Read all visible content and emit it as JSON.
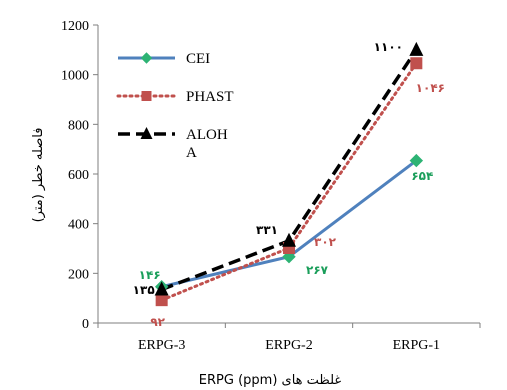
{
  "chart_data": {
    "type": "line",
    "categories": [
      "ERPG-3",
      "ERPG-2",
      "ERPG-1"
    ],
    "ylabel": "فاصله خطر (متر)",
    "xlabel": "غلظت های ERPG (ppm)",
    "ylim": [
      0,
      1200
    ],
    "yticks": [
      "0",
      "200",
      "400",
      "600",
      "800",
      "1000",
      "1200"
    ],
    "grid": false,
    "legend_position": "top-left",
    "series": [
      {
        "name": "CEI",
        "values": [
          146,
          267,
          654
        ],
        "labels": [
          "۱۴۶",
          "۲۶۷",
          "۶۵۴"
        ],
        "color": "#4f81bd",
        "label_color": "#1a9e5a",
        "marker": "diamond",
        "dash": "solid"
      },
      {
        "name": "PHAST",
        "values": [
          92,
          302,
          1046
        ],
        "labels": [
          "۹۲",
          "۳۰۲",
          "۱۰۴۶"
        ],
        "color": "#c0504d",
        "label_color": "#c0504d",
        "marker": "square",
        "dash": "dot"
      },
      {
        "name": "ALOH\nA",
        "values": [
          135,
          331,
          1100
        ],
        "labels": [
          "۱۳۵",
          "۳۳۱",
          "۱۱۰۰"
        ],
        "color": "#000000",
        "label_color": "#000000",
        "marker": "triangle",
        "dash": "dash"
      }
    ]
  }
}
